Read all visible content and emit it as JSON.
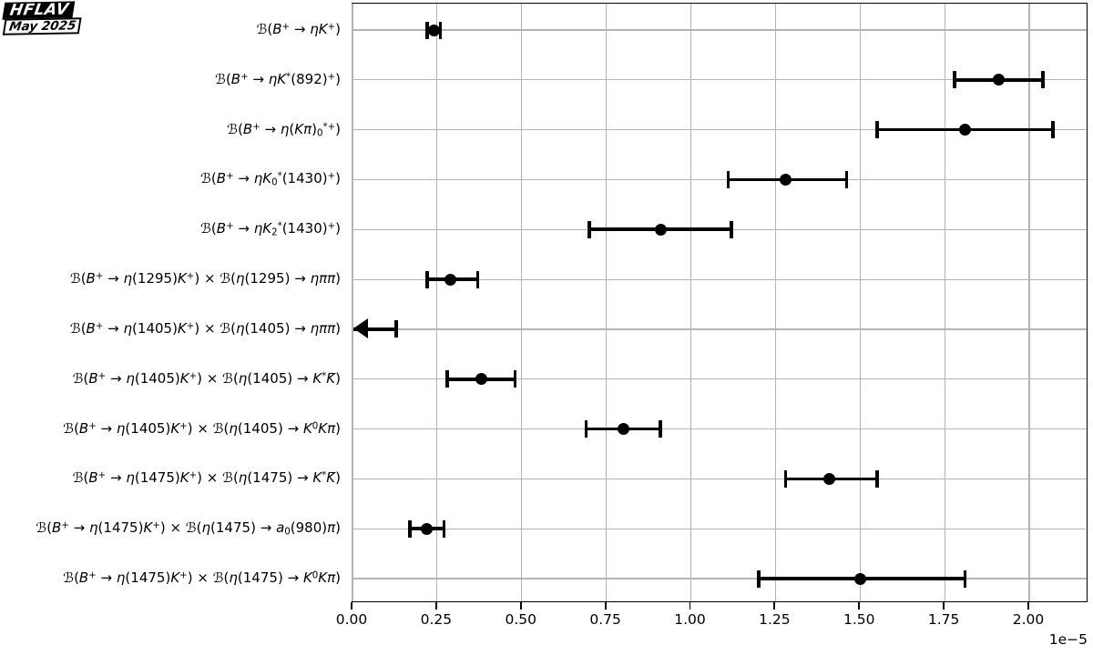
{
  "logo": {
    "title": "HFLAV",
    "subtitle": "May 2025"
  },
  "chart_data": {
    "type": "scatter",
    "subtype": "horizontal-errorbar-dot-plot",
    "title": "",
    "xlabel": "",
    "ylabel": "",
    "grid": true,
    "colors": {
      "marker": "#000000",
      "grid": "#b4b4b4",
      "frame": "#000000"
    },
    "x_axis": {
      "tick_values": [
        0,
        0.25,
        0.5,
        0.75,
        1.0,
        1.25,
        1.5,
        1.75,
        2.0
      ],
      "tick_labels": [
        "0.00",
        "0.25",
        "0.50",
        "0.75",
        "1.00",
        "1.25",
        "1.50",
        "1.75",
        "2.00"
      ],
      "offset_label": "1e−5",
      "xlim": [
        0,
        2.175
      ],
      "unit_scale": "1e-5"
    },
    "rows": [
      {
        "label": "ℬ(B^+ → ηK^+)",
        "value": 0.24,
        "err_minus": 0.02,
        "err_plus": 0.02
      },
      {
        "label": "ℬ(B^+ → ηK^*(892)^+)",
        "value": 1.91,
        "err_minus": 0.13,
        "err_plus": 0.13
      },
      {
        "label": "ℬ(B^+ → η(Kπ)_0^{*+})",
        "value": 1.81,
        "err_minus": 0.26,
        "err_plus": 0.26
      },
      {
        "label": "ℬ(B^+ → ηK_0^*(1430)^+)",
        "value": 1.28,
        "err_minus": 0.17,
        "err_plus": 0.18
      },
      {
        "label": "ℬ(B^+ → ηK_2^*(1430)^+)",
        "value": 0.91,
        "err_minus": 0.21,
        "err_plus": 0.21
      },
      {
        "label": "ℬ(B^+ → η(1295)K^+) × ℬ(η(1295) → ηππ)",
        "value": 0.29,
        "err_minus": 0.07,
        "err_plus": 0.08
      },
      {
        "label": "ℬ(B^+ → η(1405)K^+) × ℬ(η(1405) → ηππ)",
        "upper_limit": 0.13
      },
      {
        "label": "ℬ(B^+ → η(1405)K^+) × ℬ(η(1405) → K^*K̄)",
        "value": 0.38,
        "err_minus": 0.1,
        "err_plus": 0.1
      },
      {
        "label": "ℬ(B^+ → η(1405)K^+) × ℬ(η(1405) → K^0Kπ)",
        "value": 0.8,
        "err_minus": 0.11,
        "err_plus": 0.11
      },
      {
        "label": "ℬ(B^+ → η(1475)K^+) × ℬ(η(1475) → K^*K̄)",
        "value": 1.41,
        "err_minus": 0.13,
        "err_plus": 0.14
      },
      {
        "label": "ℬ(B^+ → η(1475)K^+) × ℬ(η(1475) → a_0(980)π)",
        "value": 0.22,
        "err_minus": 0.05,
        "err_plus": 0.05
      },
      {
        "label": "ℬ(B^+ → η(1475)K^+) × ℬ(η(1475) → K^0Kπ)",
        "value": 1.5,
        "err_minus": 0.3,
        "err_plus": 0.31
      }
    ]
  }
}
